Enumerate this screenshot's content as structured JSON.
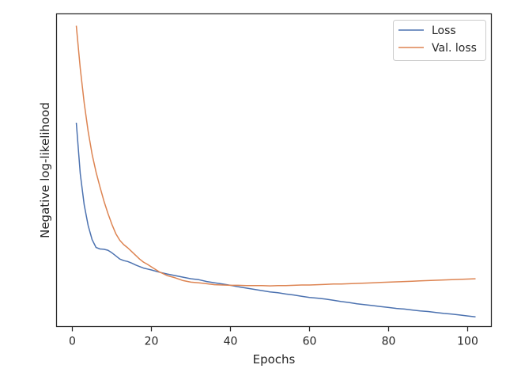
{
  "chart_data": {
    "type": "line",
    "title": "",
    "xlabel": "Epochs",
    "ylabel": "Negative log-likelihood",
    "xlim": [
      -4,
      106
    ],
    "xticks": [
      0,
      20,
      40,
      60,
      80,
      100
    ],
    "ylim": [
      0,
      1
    ],
    "y_tick_labels_shown": false,
    "grid": false,
    "legend_position": "top-right",
    "series": [
      {
        "name": "Loss",
        "color": "#4c72b0",
        "x": [
          1,
          2,
          3,
          4,
          5,
          6,
          7,
          8,
          9,
          10,
          11,
          12,
          13,
          14,
          15,
          16,
          17,
          18,
          19,
          20,
          22,
          24,
          26,
          28,
          30,
          32,
          34,
          36,
          38,
          40,
          42,
          44,
          46,
          48,
          50,
          52,
          54,
          56,
          58,
          60,
          62,
          64,
          66,
          68,
          70,
          72,
          74,
          76,
          78,
          80,
          82,
          84,
          86,
          88,
          90,
          92,
          94,
          96,
          98,
          100,
          102
        ],
        "y": [
          0.652,
          0.489,
          0.389,
          0.323,
          0.278,
          0.253,
          0.248,
          0.247,
          0.244,
          0.236,
          0.226,
          0.216,
          0.211,
          0.208,
          0.203,
          0.197,
          0.192,
          0.187,
          0.184,
          0.181,
          0.174,
          0.168,
          0.163,
          0.158,
          0.153,
          0.15,
          0.144,
          0.14,
          0.136,
          0.132,
          0.127,
          0.123,
          0.119,
          0.115,
          0.111,
          0.108,
          0.104,
          0.101,
          0.097,
          0.093,
          0.091,
          0.088,
          0.084,
          0.08,
          0.077,
          0.073,
          0.07,
          0.067,
          0.064,
          0.061,
          0.058,
          0.056,
          0.053,
          0.05,
          0.048,
          0.045,
          0.042,
          0.04,
          0.037,
          0.034,
          0.031
        ]
      },
      {
        "name": "Val. loss",
        "color": "#dd8452",
        "x": [
          1,
          2,
          3,
          4,
          5,
          6,
          7,
          8,
          9,
          10,
          11,
          12,
          13,
          14,
          15,
          16,
          17,
          18,
          19,
          20,
          22,
          24,
          26,
          28,
          30,
          32,
          34,
          36,
          38,
          40,
          42,
          44,
          46,
          48,
          50,
          52,
          54,
          56,
          58,
          60,
          62,
          64,
          66,
          68,
          70,
          72,
          74,
          76,
          78,
          80,
          82,
          84,
          86,
          88,
          90,
          92,
          94,
          96,
          98,
          100,
          102
        ],
        "y": [
          0.962,
          0.826,
          0.715,
          0.624,
          0.551,
          0.494,
          0.446,
          0.401,
          0.362,
          0.327,
          0.297,
          0.276,
          0.262,
          0.252,
          0.24,
          0.228,
          0.216,
          0.206,
          0.199,
          0.191,
          0.175,
          0.163,
          0.156,
          0.147,
          0.142,
          0.14,
          0.137,
          0.134,
          0.133,
          0.132,
          0.132,
          0.131,
          0.131,
          0.131,
          0.13,
          0.131,
          0.131,
          0.132,
          0.133,
          0.133,
          0.134,
          0.135,
          0.136,
          0.136,
          0.137,
          0.138,
          0.139,
          0.14,
          0.141,
          0.142,
          0.143,
          0.144,
          0.145,
          0.146,
          0.147,
          0.148,
          0.149,
          0.15,
          0.151,
          0.152,
          0.153
        ]
      }
    ]
  }
}
